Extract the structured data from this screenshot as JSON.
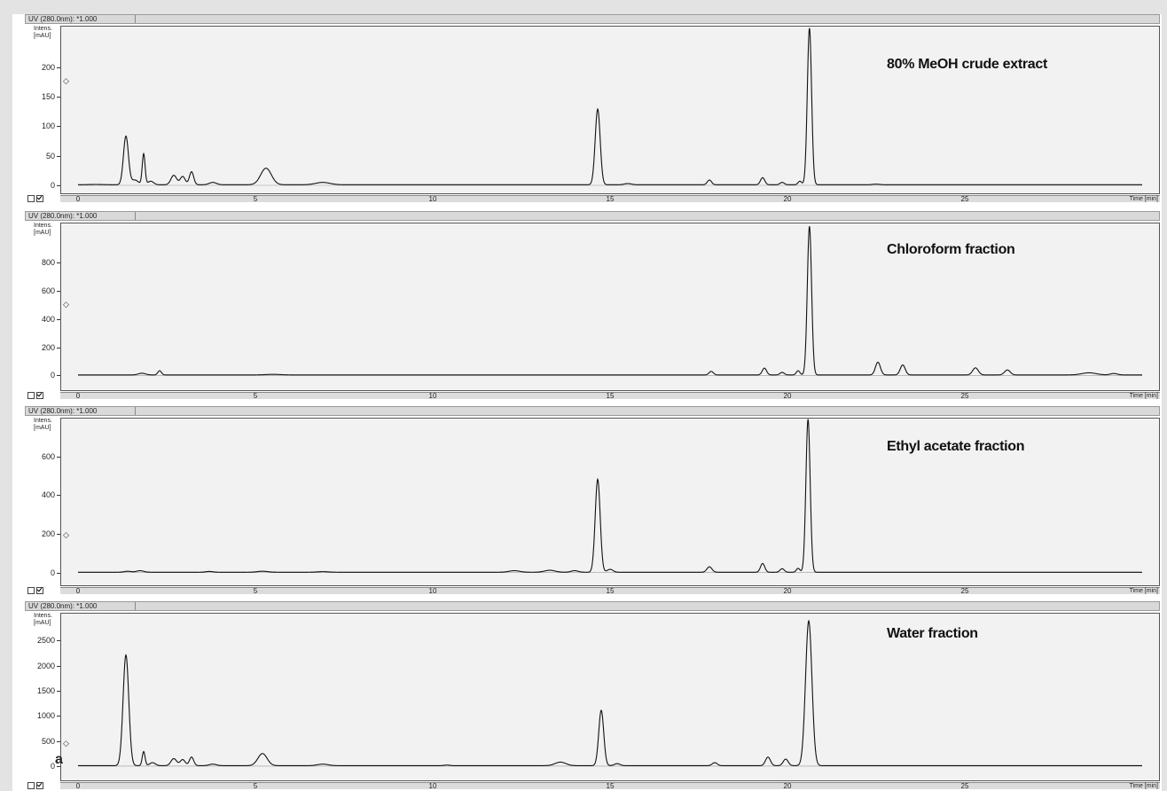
{
  "figure_label": "a",
  "chart_data": [
    {
      "type": "line",
      "title": "80% MeOH crude extract",
      "caption": "UV (280.0nm): *1.000",
      "ylabel_line1": "Intens.",
      "ylabel_line2": "[mAU]",
      "xlabel": "Time [min]",
      "xlim": [
        -0.5,
        30.5
      ],
      "ylim": [
        -15,
        270
      ],
      "y_ticks": [
        0,
        50,
        100,
        150,
        200
      ],
      "x_ticks": [
        0,
        5,
        10,
        15,
        20,
        25
      ],
      "baseline": 1,
      "peaks": [
        {
          "x": 0.5,
          "y": 0.5,
          "w": 0.2
        },
        {
          "x": 1.35,
          "y": 82,
          "w": 0.07
        },
        {
          "x": 1.6,
          "y": 8,
          "w": 0.1
        },
        {
          "x": 1.85,
          "y": 52,
          "w": 0.04
        },
        {
          "x": 2.05,
          "y": 6,
          "w": 0.08
        },
        {
          "x": 2.7,
          "y": 16,
          "w": 0.08
        },
        {
          "x": 2.95,
          "y": 14,
          "w": 0.07
        },
        {
          "x": 3.2,
          "y": 22,
          "w": 0.06
        },
        {
          "x": 3.8,
          "y": 4,
          "w": 0.1
        },
        {
          "x": 5.3,
          "y": 28,
          "w": 0.15
        },
        {
          "x": 6.9,
          "y": 4,
          "w": 0.2
        },
        {
          "x": 14.65,
          "y": 128,
          "w": 0.07
        },
        {
          "x": 15.5,
          "y": 2,
          "w": 0.1
        },
        {
          "x": 17.8,
          "y": 8,
          "w": 0.06
        },
        {
          "x": 19.3,
          "y": 12,
          "w": 0.06
        },
        {
          "x": 19.85,
          "y": 4,
          "w": 0.06
        },
        {
          "x": 20.35,
          "y": 6,
          "w": 0.05
        },
        {
          "x": 20.62,
          "y": 265,
          "w": 0.06
        },
        {
          "x": 22.5,
          "y": 1,
          "w": 0.1
        }
      ],
      "color": "#111111"
    },
    {
      "type": "line",
      "title": "Chloroform fraction",
      "caption": "UV (280.0nm): *1.000",
      "ylabel_line1": "Intens.",
      "ylabel_line2": "[mAU]",
      "xlabel": "Time [min]",
      "xlim": [
        -0.5,
        30.5
      ],
      "ylim": [
        -110,
        1080
      ],
      "y_ticks": [
        0,
        200,
        400,
        600,
        800
      ],
      "x_ticks": [
        0,
        5,
        10,
        15,
        20,
        25
      ],
      "baseline": 4,
      "peaks": [
        {
          "x": 1.8,
          "y": 12,
          "w": 0.1
        },
        {
          "x": 2.3,
          "y": 30,
          "w": 0.05
        },
        {
          "x": 5.5,
          "y": 4,
          "w": 0.2
        },
        {
          "x": 17.85,
          "y": 25,
          "w": 0.06
        },
        {
          "x": 19.35,
          "y": 48,
          "w": 0.06
        },
        {
          "x": 19.85,
          "y": 18,
          "w": 0.06
        },
        {
          "x": 20.3,
          "y": 30,
          "w": 0.05
        },
        {
          "x": 20.62,
          "y": 1050,
          "w": 0.06
        },
        {
          "x": 22.55,
          "y": 90,
          "w": 0.07
        },
        {
          "x": 23.25,
          "y": 70,
          "w": 0.07
        },
        {
          "x": 25.3,
          "y": 50,
          "w": 0.08
        },
        {
          "x": 26.2,
          "y": 35,
          "w": 0.08
        },
        {
          "x": 28.5,
          "y": 15,
          "w": 0.2
        },
        {
          "x": 29.2,
          "y": 10,
          "w": 0.1
        }
      ],
      "color": "#111111"
    },
    {
      "type": "line",
      "title": "Ethyl acetate fraction",
      "caption": "UV (280.0nm): *1.000",
      "ylabel_line1": "Intens.",
      "ylabel_line2": "[mAU]",
      "xlabel": "Time [min]",
      "xlim": [
        -0.5,
        30.5
      ],
      "ylim": [
        -70,
        800
      ],
      "y_ticks": [
        0,
        200,
        400,
        600
      ],
      "x_ticks": [
        0,
        5,
        10,
        15,
        20,
        25
      ],
      "baseline": 2,
      "peaks": [
        {
          "x": 1.4,
          "y": 5,
          "w": 0.1
        },
        {
          "x": 1.75,
          "y": 8,
          "w": 0.1
        },
        {
          "x": 3.7,
          "y": 4,
          "w": 0.1
        },
        {
          "x": 5.2,
          "y": 5,
          "w": 0.15
        },
        {
          "x": 6.9,
          "y": 3,
          "w": 0.15
        },
        {
          "x": 12.3,
          "y": 8,
          "w": 0.15
        },
        {
          "x": 13.3,
          "y": 10,
          "w": 0.15
        },
        {
          "x": 14.0,
          "y": 8,
          "w": 0.1
        },
        {
          "x": 14.65,
          "y": 480,
          "w": 0.07
        },
        {
          "x": 15.0,
          "y": 15,
          "w": 0.08
        },
        {
          "x": 17.8,
          "y": 28,
          "w": 0.07
        },
        {
          "x": 19.3,
          "y": 45,
          "w": 0.06
        },
        {
          "x": 19.85,
          "y": 18,
          "w": 0.06
        },
        {
          "x": 20.3,
          "y": 20,
          "w": 0.05
        },
        {
          "x": 20.58,
          "y": 790,
          "w": 0.06
        }
      ],
      "color": "#111111"
    },
    {
      "type": "line",
      "title": "Water fraction",
      "caption": "UV (280.0nm): *1.000",
      "ylabel_line1": "Intens.",
      "ylabel_line2": "[mAU]",
      "xlabel": "Time [min]",
      "xlim": [
        -0.5,
        30.5
      ],
      "ylim": [
        -300,
        3050
      ],
      "y_ticks": [
        0,
        500,
        1000,
        1500,
        2000,
        2500
      ],
      "x_ticks": [
        0,
        5,
        10,
        15,
        20,
        25
      ],
      "baseline": 10,
      "peaks": [
        {
          "x": 1.35,
          "y": 2200,
          "w": 0.08
        },
        {
          "x": 1.85,
          "y": 280,
          "w": 0.04
        },
        {
          "x": 2.1,
          "y": 60,
          "w": 0.08
        },
        {
          "x": 2.7,
          "y": 140,
          "w": 0.08
        },
        {
          "x": 2.95,
          "y": 120,
          "w": 0.07
        },
        {
          "x": 3.2,
          "y": 170,
          "w": 0.06
        },
        {
          "x": 3.8,
          "y": 30,
          "w": 0.1
        },
        {
          "x": 5.2,
          "y": 240,
          "w": 0.13
        },
        {
          "x": 6.9,
          "y": 30,
          "w": 0.15
        },
        {
          "x": 10.4,
          "y": 12,
          "w": 0.08
        },
        {
          "x": 13.6,
          "y": 70,
          "w": 0.15
        },
        {
          "x": 14.75,
          "y": 1100,
          "w": 0.07
        },
        {
          "x": 15.2,
          "y": 40,
          "w": 0.08
        },
        {
          "x": 17.95,
          "y": 60,
          "w": 0.07
        },
        {
          "x": 19.45,
          "y": 170,
          "w": 0.07
        },
        {
          "x": 19.95,
          "y": 130,
          "w": 0.07
        },
        {
          "x": 20.6,
          "y": 2880,
          "w": 0.09
        }
      ],
      "color": "#111111"
    }
  ]
}
